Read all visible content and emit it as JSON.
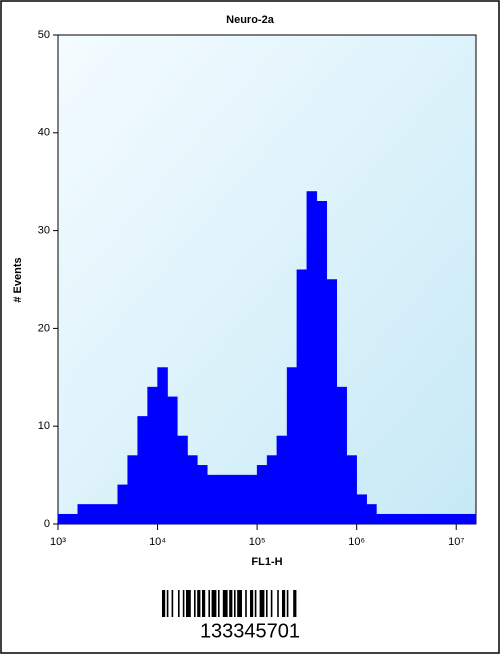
{
  "chart_data": {
    "type": "histogram",
    "title": "Neuro-2a",
    "xlabel": "FL1-H",
    "ylabel": "# Events",
    "xscale": "log",
    "bins": [
      1000,
      1260,
      1580,
      2000,
      2510,
      3160,
      3980,
      5010,
      6310,
      7940,
      10000,
      12600,
      15800,
      20000,
      25100,
      31600,
      39800,
      50100,
      63100,
      79400,
      100000,
      126000,
      158000,
      200000,
      251000,
      316000,
      398000,
      501000,
      631000,
      794000,
      1000000,
      1260000,
      1580000,
      2000000,
      2510000,
      3160000,
      3980000,
      5010000,
      6310000,
      7940000,
      10000000,
      12600000,
      15800000
    ],
    "counts": [
      1,
      1,
      2,
      2,
      2,
      2,
      4,
      7,
      11,
      14,
      16,
      13,
      9,
      7,
      6,
      5,
      5,
      5,
      5,
      5,
      6,
      7,
      9,
      16,
      26,
      34,
      33,
      25,
      14,
      7,
      3,
      2,
      1,
      1,
      1,
      1,
      1,
      1,
      1,
      1,
      1,
      1
    ],
    "color": "#0000ff",
    "xlim": [
      1000,
      15800000
    ],
    "xticks": [
      {
        "value": 1000,
        "label": "10³"
      },
      {
        "value": 10000,
        "label": "10⁴"
      },
      {
        "value": 100000,
        "label": "10⁵"
      },
      {
        "value": 1000000,
        "label": "10⁶"
      },
      {
        "value": 10000000,
        "label": "10⁷"
      }
    ],
    "ylim": [
      0,
      50
    ],
    "yticks": [
      0,
      10,
      20,
      30,
      40,
      50
    ],
    "annotations": [
      "133345701"
    ]
  }
}
